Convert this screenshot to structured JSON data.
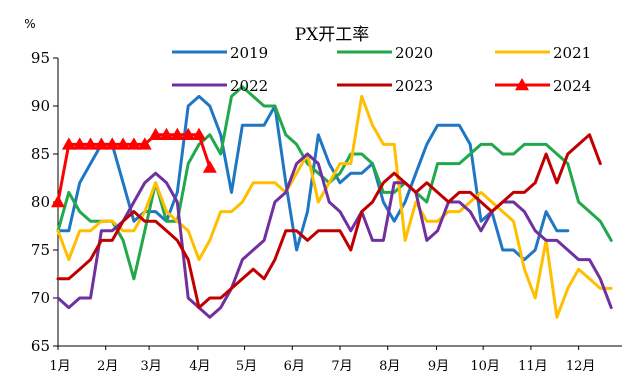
{
  "chart_data": {
    "type": "line",
    "title": "PX开工率",
    "ylabel": "%",
    "xlabel": "",
    "ylim": [
      65,
      95
    ],
    "yticks": [
      65,
      70,
      75,
      80,
      85,
      90,
      95
    ],
    "xlim": [
      0,
      52
    ],
    "x_unit": "week",
    "xticks": [
      {
        "label": "1月",
        "x": 0
      },
      {
        "label": "2月",
        "x": 4.4
      },
      {
        "label": "3月",
        "x": 8.4
      },
      {
        "label": "4月",
        "x": 12.9
      },
      {
        "label": "5月",
        "x": 17.2
      },
      {
        "label": "6月",
        "x": 21.6
      },
      {
        "label": "7月",
        "x": 26.0
      },
      {
        "label": "8月",
        "x": 30.4
      },
      {
        "label": "9月",
        "x": 34.9
      },
      {
        "label": "10月",
        "x": 39.2
      },
      {
        "label": "11月",
        "x": 43.6
      },
      {
        "label": "12月",
        "x": 48.0
      }
    ],
    "grid": false,
    "legend": "top",
    "series": [
      {
        "name": "2019",
        "color": "#1f77c4",
        "marker": "none",
        "values": [
          77,
          77,
          82,
          84,
          86,
          86,
          82,
          78,
          79,
          79,
          78,
          81,
          90,
          91,
          90,
          87,
          81,
          88,
          88,
          88,
          90,
          82,
          75,
          79,
          87,
          84,
          82,
          83,
          83,
          84,
          80,
          78,
          80,
          83,
          86,
          88,
          88,
          88,
          86,
          78,
          79,
          75,
          75,
          74,
          75,
          79,
          77,
          77
        ]
      },
      {
        "name": "2020",
        "color": "#22a84a",
        "marker": "none",
        "values": [
          77,
          81,
          79,
          78,
          78,
          78,
          76,
          72,
          77,
          82,
          78,
          78,
          84,
          86,
          87,
          85,
          91,
          92,
          91,
          90,
          90,
          87,
          86,
          84,
          83,
          82,
          83,
          85,
          85,
          84,
          81,
          81,
          82,
          81,
          80,
          84,
          84,
          84,
          85,
          86,
          86,
          85,
          85,
          86,
          86,
          86,
          85,
          84,
          80,
          79,
          78,
          76
        ]
      },
      {
        "name": "2021",
        "color": "#ffbf00",
        "marker": "none",
        "values": [
          77,
          74,
          77,
          77,
          78,
          78,
          77,
          77,
          79,
          82,
          79,
          78,
          77,
          74,
          76,
          79,
          79,
          80,
          82,
          82,
          82,
          81,
          83,
          85,
          80,
          82,
          84,
          84,
          91,
          88,
          86,
          86,
          76,
          80,
          78,
          78,
          79,
          79,
          80,
          81,
          80,
          79,
          78,
          73,
          70,
          76,
          68,
          71,
          73,
          72,
          71,
          71
        ]
      },
      {
        "name": "2022",
        "color": "#7030a0",
        "marker": "none",
        "values": [
          70,
          69,
          70,
          70,
          77,
          77,
          78,
          80,
          82,
          83,
          82,
          80,
          70,
          69,
          68,
          69,
          71,
          74,
          75,
          76,
          80,
          81,
          84,
          85,
          84,
          80,
          79,
          77,
          79,
          76,
          76,
          82,
          82,
          81,
          76,
          77,
          80,
          80,
          79,
          77,
          79,
          80,
          80,
          79,
          77,
          76,
          76,
          75,
          74,
          74,
          72,
          69
        ]
      },
      {
        "name": "2023",
        "color": "#c00000",
        "marker": "none",
        "values": [
          72,
          72,
          73,
          74,
          76,
          76,
          78,
          79,
          78,
          78,
          77,
          76,
          74,
          69,
          70,
          70,
          71,
          72,
          73,
          72,
          74,
          77,
          77,
          76,
          77,
          77,
          77,
          75,
          79,
          80,
          82,
          83,
          82,
          81,
          82,
          81,
          80,
          81,
          81,
          80,
          79,
          80,
          81,
          81,
          82,
          85,
          82,
          85,
          86,
          87,
          84
        ]
      },
      {
        "name": "2024",
        "color": "#ff0000",
        "marker": "triangle",
        "values": [
          80,
          86,
          86,
          86,
          86,
          86,
          86,
          86,
          86,
          87,
          87,
          87,
          87,
          87,
          83.6
        ]
      }
    ]
  }
}
